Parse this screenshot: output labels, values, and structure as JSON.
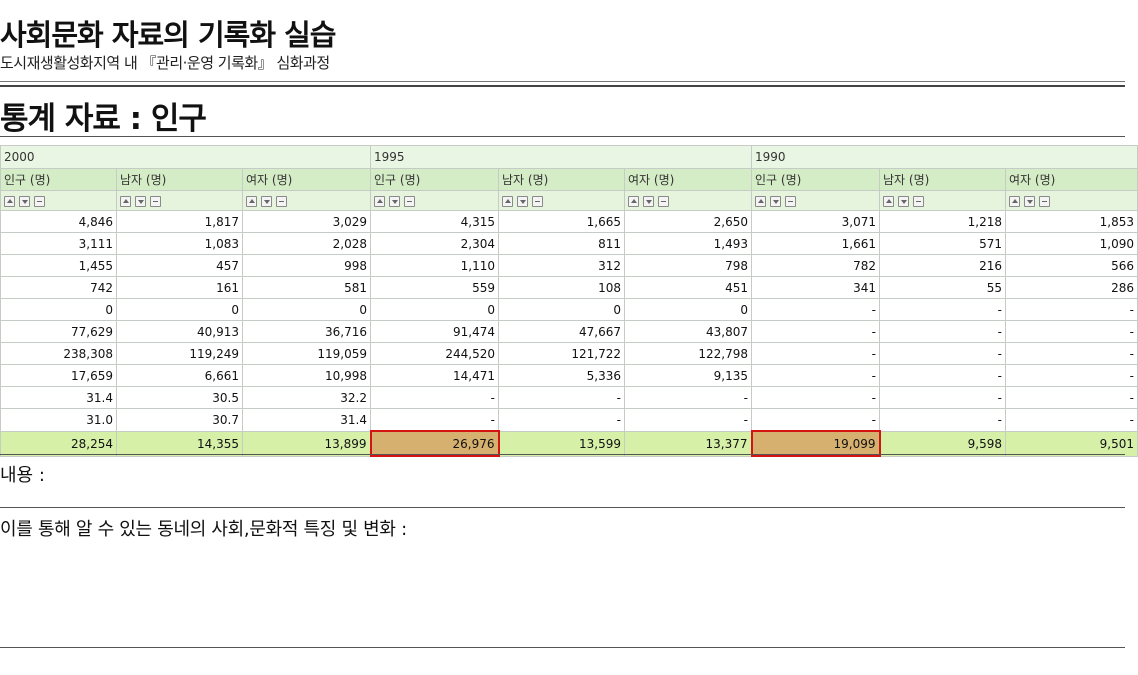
{
  "title": "사회문화 자료의 기록화 실습",
  "subtitle": "도시재생활성화지역 내 『관리·운영 기록화』 심화과정",
  "section": "통계 자료 : 인구",
  "table": {
    "years": [
      "2000",
      "1995",
      "1990"
    ],
    "columns": [
      "인구 (명)",
      "남자 (명)",
      "여자 (명)",
      "인구 (명)",
      "남자 (명)",
      "여자 (명)",
      "인구 (명)",
      "남자 (명)",
      "여자 (명)"
    ],
    "rows": [
      [
        "4,846",
        "1,817",
        "3,029",
        "4,315",
        "1,665",
        "2,650",
        "3,071",
        "1,218",
        "1,853"
      ],
      [
        "3,111",
        "1,083",
        "2,028",
        "2,304",
        "811",
        "1,493",
        "1,661",
        "571",
        "1,090"
      ],
      [
        "1,455",
        "457",
        "998",
        "1,110",
        "312",
        "798",
        "782",
        "216",
        "566"
      ],
      [
        "742",
        "161",
        "581",
        "559",
        "108",
        "451",
        "341",
        "55",
        "286"
      ],
      [
        "0",
        "0",
        "0",
        "0",
        "0",
        "0",
        "-",
        "-",
        "-"
      ],
      [
        "77,629",
        "40,913",
        "36,716",
        "91,474",
        "47,667",
        "43,807",
        "-",
        "-",
        "-"
      ],
      [
        "238,308",
        "119,249",
        "119,059",
        "244,520",
        "121,722",
        "122,798",
        "-",
        "-",
        "-"
      ],
      [
        "17,659",
        "6,661",
        "10,998",
        "14,471",
        "5,336",
        "9,135",
        "-",
        "-",
        "-"
      ],
      [
        "31.4",
        "30.5",
        "32.2",
        "-",
        "-",
        "-",
        "-",
        "-",
        "-"
      ],
      [
        "31.0",
        "30.7",
        "31.4",
        "-",
        "-",
        "-",
        "-",
        "-",
        "-"
      ]
    ],
    "total": [
      "28,254",
      "14,355",
      "13,899",
      "26,976",
      "13,599",
      "13,377",
      "19,099",
      "9,598",
      "9,501"
    ],
    "highlight_color": "#d6b06e",
    "highlight_border": "#d41313",
    "total_row_color": "#d6f0a8",
    "header_color": "#d5edc6"
  },
  "label_content": "내용 :",
  "label_features": "이를 통해 알 수 있는 동네의 사회,문화적 특징 및 변화 :"
}
